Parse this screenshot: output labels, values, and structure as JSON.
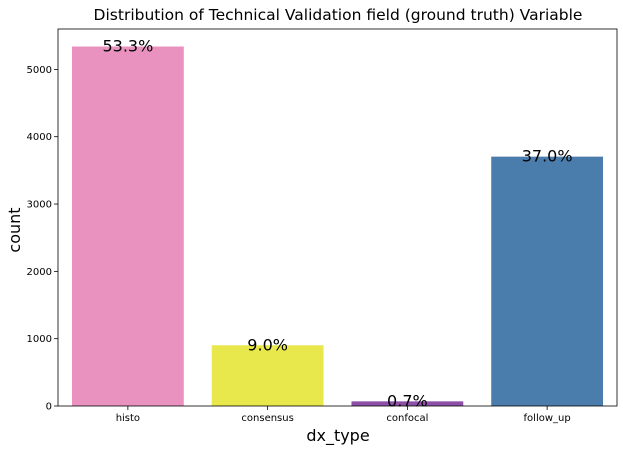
{
  "chart_data": {
    "type": "bar",
    "title": "Distribution of Technical Validation field (ground truth) Variable",
    "xlabel": "dx_type",
    "ylabel": "count",
    "categories": [
      "histo",
      "consensus",
      "confocal",
      "follow_up"
    ],
    "values": [
      5340,
      902,
      69,
      3704
    ],
    "data_labels": [
      "53.3%",
      "9.0%",
      "0.7%",
      "37.0%"
    ],
    "colors": [
      "#e992c0",
      "#e8e84d",
      "#8e4fa8",
      "#4a7dab"
    ],
    "ylim": [
      0,
      5600
    ],
    "yticks": [
      0,
      1000,
      2000,
      3000,
      4000,
      5000
    ],
    "grid": false,
    "legend": "none"
  }
}
